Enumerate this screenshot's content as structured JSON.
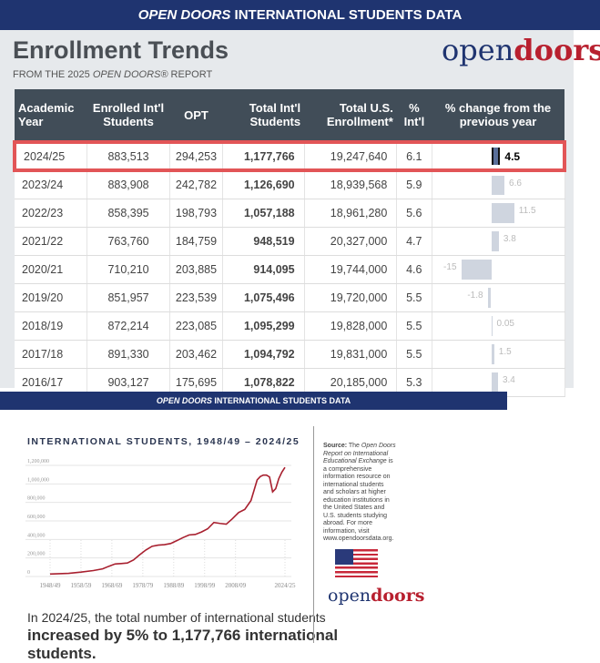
{
  "header": {
    "banner_em": "OPEN DOORS",
    "banner_rest": " INTERNATIONAL STUDENTS DATA",
    "title": "Enrollment Trends",
    "sub_pre": "FROM THE 2025 ",
    "sub_em": "OPEN DOORS®",
    "sub_post": " REPORT",
    "logo_a": "open",
    "logo_b": "doors"
  },
  "table": {
    "columns": [
      "Academic Year",
      "Enrolled Int'l Students",
      "OPT",
      "Total Int'l Students",
      "Total U.S. Enrollment*",
      "% Int'l",
      "% change from the previous year"
    ],
    "rows": [
      [
        "2024/25",
        "883,513",
        "294,253",
        "1,177,766",
        "19,247,640",
        "6.1",
        4.5,
        "4.5"
      ],
      [
        "2023/24",
        "883,908",
        "242,782",
        "1,126,690",
        "18,939,568",
        "5.9",
        6.6,
        "6.6"
      ],
      [
        "2022/23",
        "858,395",
        "198,793",
        "1,057,188",
        "18,961,280",
        "5.6",
        11.5,
        "11.5"
      ],
      [
        "2021/22",
        "763,760",
        "184,759",
        "948,519",
        "20,327,000",
        "4.7",
        3.8,
        "3.8"
      ],
      [
        "2020/21",
        "710,210",
        "203,885",
        "914,095",
        "19,744,000",
        "4.6",
        -15,
        "-15"
      ],
      [
        "2019/20",
        "851,957",
        "223,539",
        "1,075,496",
        "19,720,000",
        "5.5",
        -1.8,
        "-1.8"
      ],
      [
        "2018/19",
        "872,214",
        "223,085",
        "1,095,299",
        "19,828,000",
        "5.5",
        0.05,
        "0.05"
      ],
      [
        "2017/18",
        "891,330",
        "203,462",
        "1,094,792",
        "19,831,000",
        "5.5",
        1.5,
        "1.5"
      ],
      [
        "2016/17",
        "903,127",
        "175,695",
        "1,078,822",
        "20,185,000",
        "5.3",
        3.4,
        "3.4"
      ]
    ]
  },
  "bottom": {
    "banner_em": "OPEN DOORS",
    "banner_rest": " INTERNATIONAL STUDENTS DATA",
    "claim_pre": "In 2024/25, the total number of international students ",
    "claim_bold": "increased by 5% to 1,177,766 international students.",
    "source_label": "Source:",
    "source_pre": " The ",
    "source_em": "Open Doors Report on International Educational Exchange",
    "source_post": " is a comprehensive information resource on international students and scholars at higher education institutions in the United States and U.S. students studying abroad. For more information, visit www.opendoorsdata.org.",
    "logo_a": "open",
    "logo_b": "doors"
  },
  "chart_data": {
    "type": "line",
    "title": "INTERNATIONAL STUDENTS, 1948/49 – 2024/25",
    "xlabel": "",
    "ylabel": "",
    "ylim": [
      0,
      1200000
    ],
    "xlim": [
      1948,
      2024
    ],
    "yticks": [
      0,
      200000,
      400000,
      600000,
      800000,
      1000000,
      1200000
    ],
    "ytick_labels": [
      "0",
      "200,000",
      "400,000",
      "600,000",
      "800,000",
      "1,000,000",
      "1,200,000"
    ],
    "xticks": [
      1948,
      1958,
      1968,
      1978,
      1988,
      1998,
      2008,
      2024
    ],
    "xtick_labels": [
      "1948/49",
      "1958/59",
      "1968/69",
      "1978/79",
      "1988/89",
      "1998/99",
      "2008/09",
      "2024/25"
    ],
    "color": "#a8202f",
    "x": [
      1948,
      1954,
      1958,
      1962,
      1965,
      1967,
      1969,
      1971,
      1973,
      1975,
      1977,
      1979,
      1981,
      1983,
      1985,
      1987,
      1989,
      1991,
      1993,
      1995,
      1997,
      1999,
      2001,
      2003,
      2005,
      2007,
      2009,
      2011,
      2013,
      2015,
      2016,
      2017,
      2018,
      2019,
      2020,
      2021,
      2022,
      2023,
      2024
    ],
    "y": [
      26000,
      34000,
      47000,
      64000,
      82000,
      110000,
      135000,
      140000,
      146000,
      179000,
      235000,
      286000,
      326000,
      339000,
      344000,
      356000,
      387000,
      420000,
      449000,
      454000,
      481000,
      515000,
      583000,
      573000,
      565000,
      624000,
      691000,
      724000,
      820000,
      1043000,
      1079000,
      1095000,
      1095000,
      1075000,
      914000,
      948000,
      1057000,
      1127000,
      1178000
    ]
  }
}
